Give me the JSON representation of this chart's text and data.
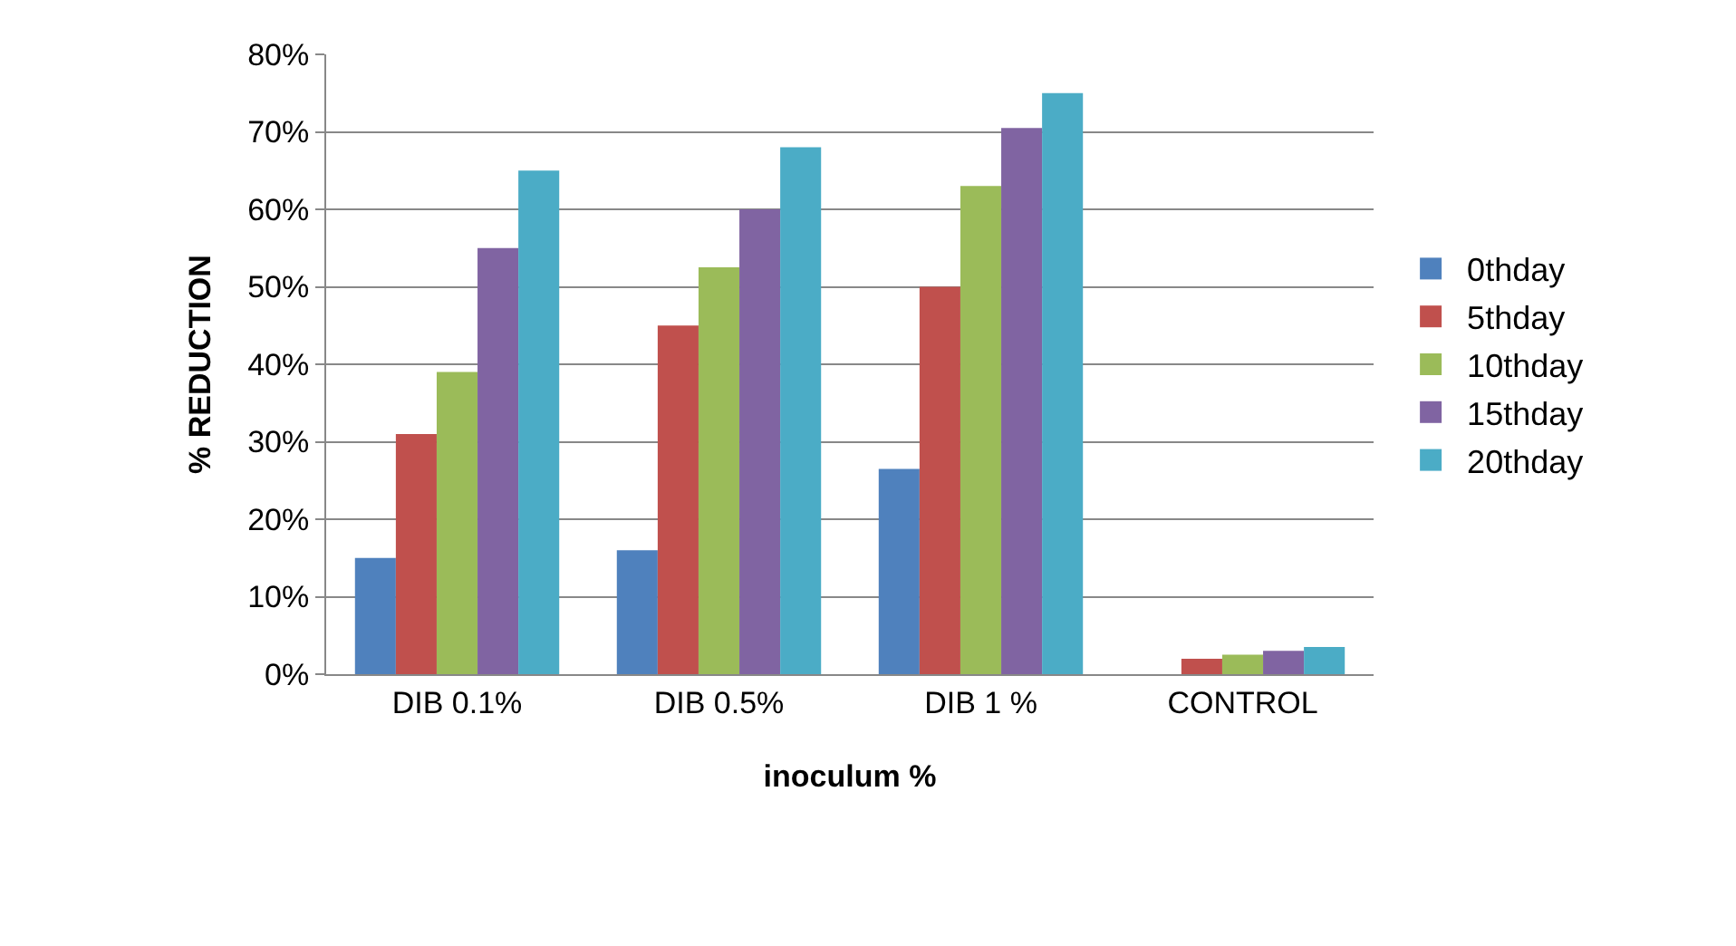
{
  "chart_data": {
    "type": "bar",
    "xlabel": "inoculum %",
    "ylabel": "% REDUCTION",
    "categories": [
      "DIB 0.1%",
      "DIB 0.5%",
      "DIB 1 %",
      "CONTROL"
    ],
    "series": [
      {
        "name": "0thday",
        "color": "#4f81bd",
        "values": [
          15,
          16,
          26.5,
          0
        ]
      },
      {
        "name": "5thday",
        "color": "#c0504d",
        "values": [
          31,
          45,
          50,
          2
        ]
      },
      {
        "name": "10thday",
        "color": "#9bbb59",
        "values": [
          39,
          52.5,
          63,
          2.5
        ]
      },
      {
        "name": "15thday",
        "color": "#8064a2",
        "values": [
          55,
          60,
          70.5,
          3
        ]
      },
      {
        "name": "20thday",
        "color": "#4bacc6",
        "values": [
          65,
          68,
          75,
          3.5
        ]
      }
    ],
    "ylim": [
      0,
      80
    ],
    "yticks": [
      {
        "value": 0,
        "label": "0%"
      },
      {
        "value": 10,
        "label": "10%"
      },
      {
        "value": 20,
        "label": "20%"
      },
      {
        "value": 30,
        "label": "30%"
      },
      {
        "value": 40,
        "label": "40%"
      },
      {
        "value": 50,
        "label": "50%"
      },
      {
        "value": 60,
        "label": "60%"
      },
      {
        "value": 70,
        "label": "70%"
      },
      {
        "value": 80,
        "label": "80%"
      }
    ],
    "grid": "y",
    "legend": "right"
  }
}
